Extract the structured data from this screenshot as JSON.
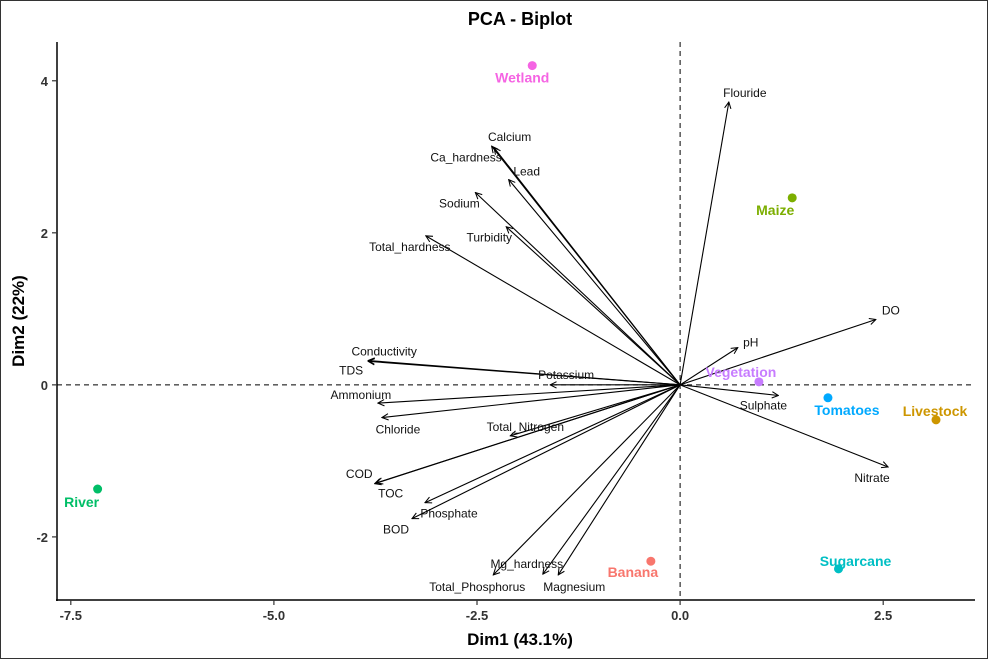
{
  "chart_data": {
    "type": "scatter",
    "subtype": "pca-biplot",
    "title": "PCA - Biplot",
    "xlabel": "Dim1 (43.1%)",
    "ylabel": "Dim2 (22%)",
    "xlim": [
      -7.67,
      3.63
    ],
    "ylim": [
      -2.83,
      4.51
    ],
    "xticks": [
      -7.5,
      -5.0,
      -2.5,
      0.0,
      2.5
    ],
    "xtick_labels": [
      "-7.5",
      "-5.0",
      "-2.5",
      "0.0",
      "2.5"
    ],
    "yticks": [
      -2,
      0,
      2,
      4
    ],
    "ytick_labels": [
      "-2",
      "0",
      "2",
      "4"
    ],
    "grid": false,
    "reference_lines": "dashed at x=0 and y=0",
    "variables": [
      {
        "name": "Flouride",
        "x": 0.6,
        "y": 3.72
      },
      {
        "name": "Calcium",
        "x": -2.32,
        "y": 3.14
      },
      {
        "name": "Ca_hardness",
        "x": -2.29,
        "y": 3.12
      },
      {
        "name": "Lead",
        "x": -2.11,
        "y": 2.7
      },
      {
        "name": "Sodium",
        "x": -2.52,
        "y": 2.53
      },
      {
        "name": "Turbidity",
        "x": -2.14,
        "y": 2.08
      },
      {
        "name": "Total_hardness",
        "x": -3.13,
        "y": 1.96
      },
      {
        "name": "Conductivity",
        "x": -3.84,
        "y": 0.32
      },
      {
        "name": "TDS",
        "x": -3.84,
        "y": 0.31
      },
      {
        "name": "Potassium",
        "x": -1.6,
        "y": 0.0
      },
      {
        "name": "Ammonium",
        "x": -3.72,
        "y": -0.24
      },
      {
        "name": "Chloride",
        "x": -3.67,
        "y": -0.43
      },
      {
        "name": "Total_Nitrogen",
        "x": -2.09,
        "y": -0.67
      },
      {
        "name": "COD",
        "x": -3.74,
        "y": -1.29
      },
      {
        "name": "TOC",
        "x": -3.76,
        "y": -1.3
      },
      {
        "name": "Phosphate",
        "x": -3.14,
        "y": -1.55
      },
      {
        "name": "BOD",
        "x": -3.3,
        "y": -1.76
      },
      {
        "name": "Mg_hardness",
        "x": -1.69,
        "y": -2.49
      },
      {
        "name": "Total_Phosphorus",
        "x": -2.3,
        "y": -2.5
      },
      {
        "name": "Magnesium",
        "x": -1.5,
        "y": -2.5
      },
      {
        "name": "DO",
        "x": 2.41,
        "y": 0.86
      },
      {
        "name": "pH",
        "x": 0.71,
        "y": 0.49
      },
      {
        "name": "Sulphate",
        "x": 1.21,
        "y": -0.14
      },
      {
        "name": "Nitrate",
        "x": 2.56,
        "y": -1.08
      }
    ],
    "individuals": [
      {
        "name": "Wetland",
        "x": -1.82,
        "y": 4.2,
        "color": "#f564e3"
      },
      {
        "name": "Maize",
        "x": 1.38,
        "y": 2.46,
        "color": "#7cae00"
      },
      {
        "name": "Vegetation",
        "x": 0.97,
        "y": 0.04,
        "color": "#c77cff"
      },
      {
        "name": "Tomatoes",
        "x": 1.82,
        "y": -0.17,
        "color": "#00a9ff"
      },
      {
        "name": "Livestock",
        "x": 3.15,
        "y": -0.46,
        "color": "#cd9600"
      },
      {
        "name": "Sugarcane",
        "x": 1.95,
        "y": -2.42,
        "color": "#00bfc4"
      },
      {
        "name": "Banana",
        "x": -0.36,
        "y": -2.32,
        "color": "#f8766d"
      },
      {
        "name": "River",
        "x": -7.17,
        "y": -1.37,
        "color": "#00be67"
      }
    ]
  }
}
